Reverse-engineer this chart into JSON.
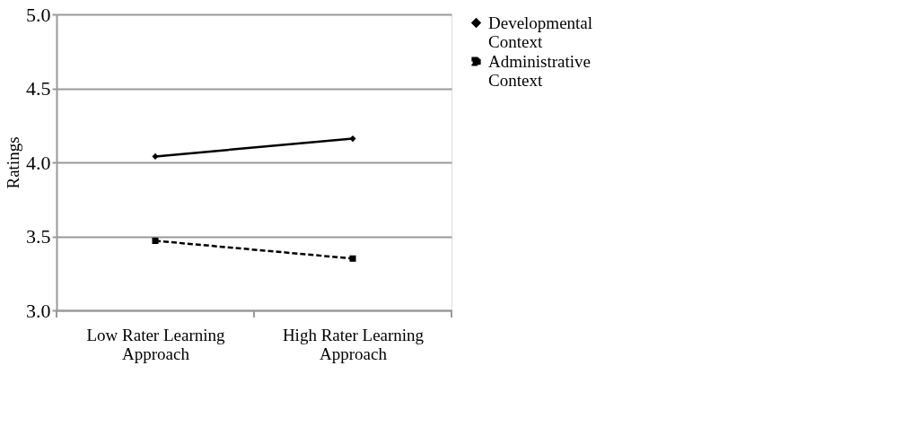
{
  "chart_data": {
    "type": "line",
    "ylabel": "Ratings",
    "categories": [
      "Low Rater Learning Approach",
      "High Rater Learning Approach"
    ],
    "series": [
      {
        "name": "Developmental Context",
        "color": "#000000",
        "values": [
          4.04,
          4.16
        ],
        "marker": "diamond",
        "line_style": "solid"
      },
      {
        "name": "Administrative Context",
        "color": "#000000",
        "values": [
          3.47,
          3.35
        ],
        "marker": "square",
        "line_style": "dashed"
      }
    ],
    "ylim": [
      3.0,
      5.0
    ],
    "yticks": [
      {
        "value": 3.0,
        "label": "3.0"
      },
      {
        "value": 3.5,
        "label": "3.5"
      },
      {
        "value": 4.0,
        "label": "4.0"
      },
      {
        "value": 4.5,
        "label": "4.5"
      },
      {
        "value": 5.0,
        "label": "5.0"
      }
    ],
    "grid": "y",
    "legend": "right"
  }
}
